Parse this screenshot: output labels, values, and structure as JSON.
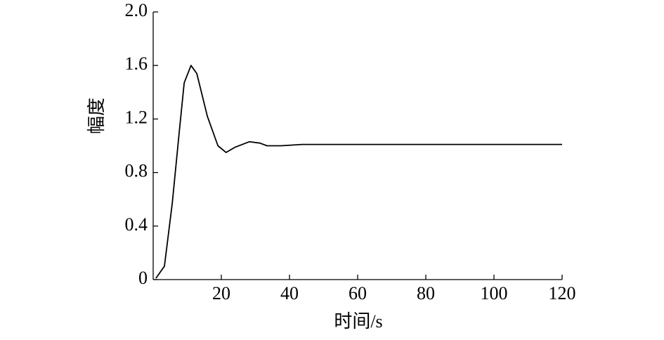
{
  "chart_data": {
    "type": "line",
    "x_label": "时间/s",
    "y_label": "幅度",
    "x": [
      0.8,
      3.3,
      5.6,
      7.6,
      9.1,
      11.1,
      12.8,
      15.9,
      19,
      21.4,
      24.1,
      28.2,
      31.3,
      33.4,
      37.5,
      43.7,
      120
    ],
    "series": [
      {
        "color": "#000000",
        "values": [
          0.01,
          0.1,
          0.57,
          1.09,
          1.47,
          1.6,
          1.54,
          1.22,
          1.0,
          0.95,
          0.99,
          1.03,
          1.02,
          1.0,
          1.0,
          1.01,
          1.01
        ]
      }
    ],
    "xlim": [
      0,
      120
    ],
    "xticks": [
      20,
      40,
      60,
      80,
      100,
      120
    ],
    "ylim": [
      0,
      2
    ],
    "yticks": [
      0,
      0.4,
      0.8,
      1.2,
      1.6,
      {
        "value": 2,
        "label": "2.0"
      }
    ]
  }
}
